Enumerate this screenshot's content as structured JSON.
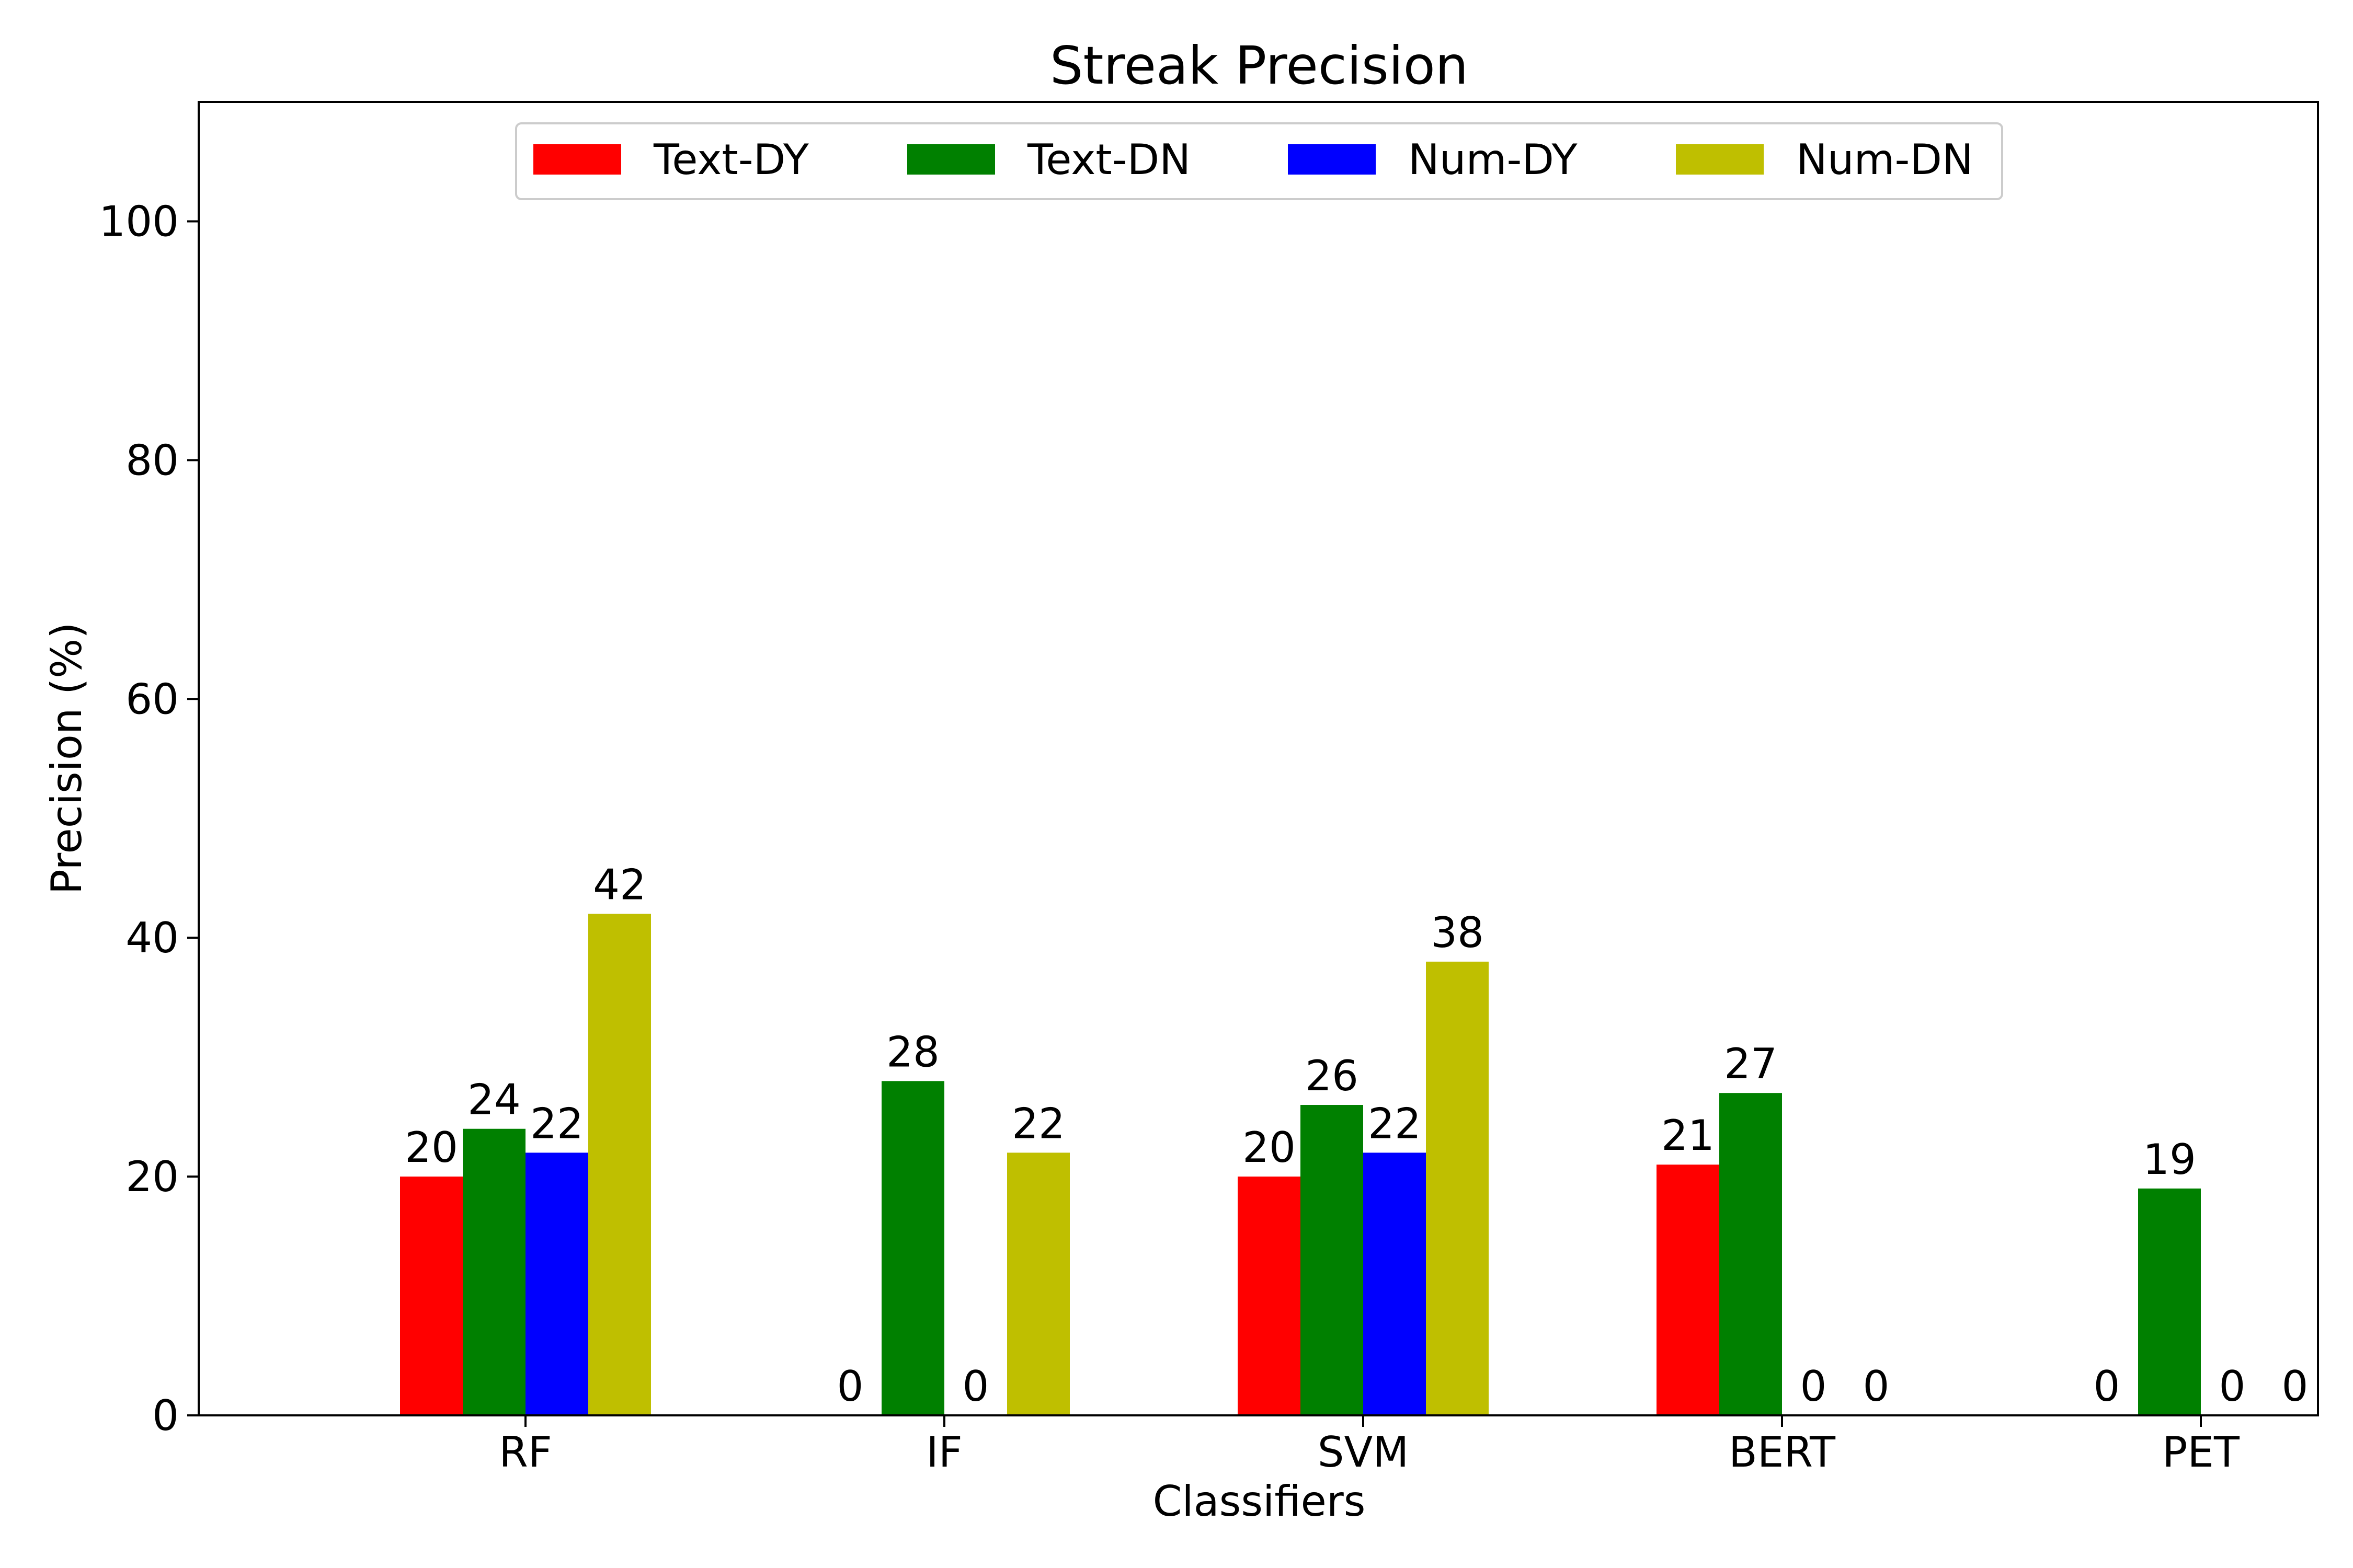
{
  "chart_data": {
    "type": "bar",
    "title": "Streak Precision",
    "xlabel": "Classifiers",
    "ylabel": "Precision (%)",
    "ylim": [
      0,
      110
    ],
    "yticks": [
      0,
      20,
      40,
      60,
      80,
      100
    ],
    "grid": false,
    "legend_position": "top-center",
    "categories": [
      "RF",
      "IF",
      "SVM",
      "BERT",
      "PET"
    ],
    "series": [
      {
        "name": "Text-DY",
        "color": "#ff0000",
        "values": [
          20,
          0,
          20,
          21,
          0
        ]
      },
      {
        "name": "Text-DN",
        "color": "#008000",
        "values": [
          24,
          28,
          26,
          27,
          19
        ]
      },
      {
        "name": "Num-DY",
        "color": "#0000ff",
        "values": [
          22,
          0,
          22,
          0,
          0
        ]
      },
      {
        "name": "Num-DN",
        "color": "#bfbf00",
        "values": [
          42,
          22,
          38,
          0,
          0
        ]
      }
    ]
  }
}
